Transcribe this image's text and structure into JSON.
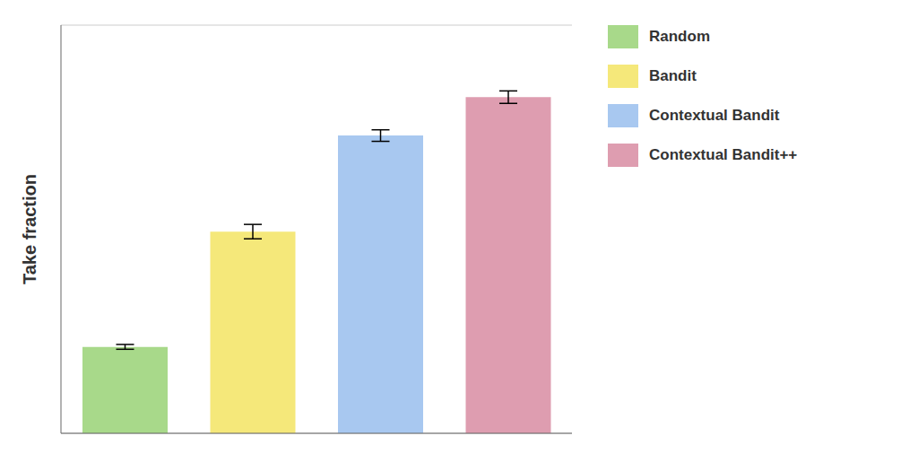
{
  "chart_data": {
    "type": "bar",
    "categories": [
      "Random",
      "Bandit",
      "Contextual Bandit",
      "Contextual Bandit++"
    ],
    "values": [
      0.18,
      0.42,
      0.62,
      0.7
    ],
    "errors": [
      0.005,
      0.015,
      0.012,
      0.013
    ],
    "colors": [
      "#a8d98a",
      "#f5e87a",
      "#a8c8f0",
      "#de9db0"
    ],
    "ylabel": "Take fraction",
    "ylim": [
      0,
      0.85
    ],
    "yticks": [
      0,
      0.2,
      0.4,
      0.6,
      0.8
    ],
    "grid": true,
    "tick_labels": false,
    "legend": "right"
  }
}
